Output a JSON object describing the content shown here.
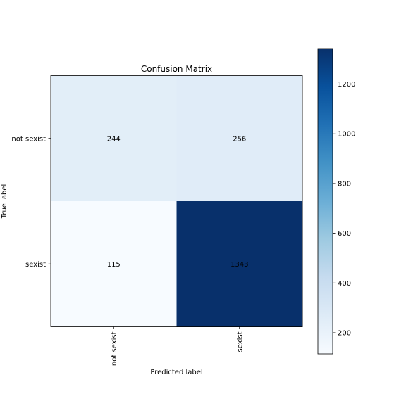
{
  "chart_data": {
    "type": "heatmap",
    "title": "Confusion Matrix",
    "xlabel": "Predicted label",
    "ylabel": "True label",
    "row_labels": [
      "not sexist",
      "sexist"
    ],
    "col_labels": [
      "not sexist",
      "sexist"
    ],
    "values": [
      [
        244,
        256
      ],
      [
        115,
        1343
      ]
    ],
    "colormap": "Blues",
    "colorbar": {
      "min": 115,
      "max": 1343,
      "ticks": [
        200,
        400,
        600,
        800,
        1000,
        1200
      ]
    },
    "grid": false
  }
}
